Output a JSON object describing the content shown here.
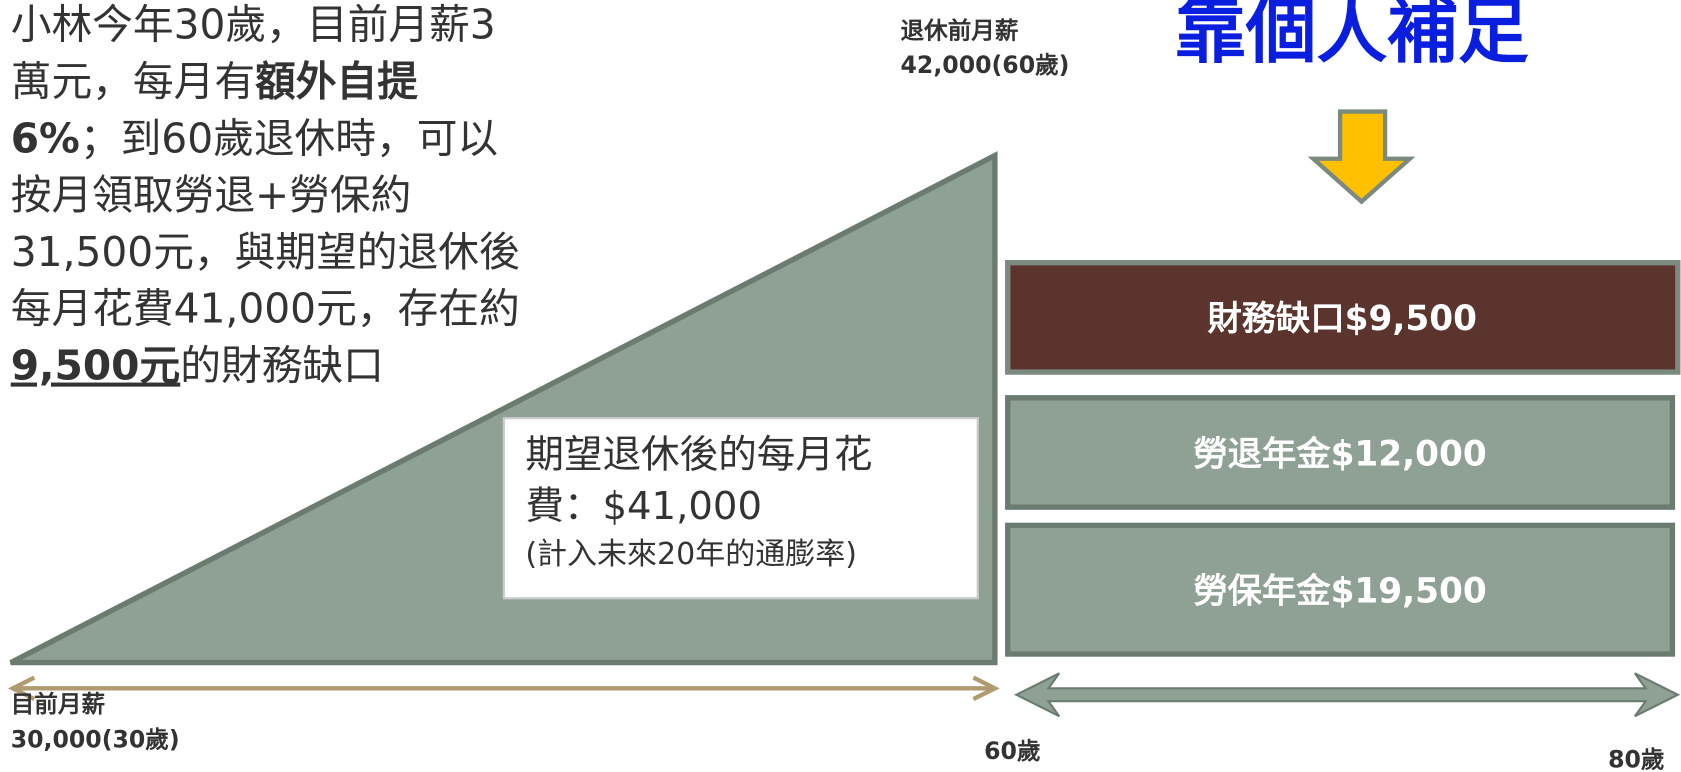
{
  "paragraph": [
    [
      {
        "text": "小林今年30歲，目前月薪3",
        "style": "normal"
      }
    ],
    [
      {
        "text": "萬元，每月有",
        "style": "normal"
      },
      {
        "text": "額外自提",
        "style": "bold"
      }
    ],
    [
      {
        "text": "6%",
        "style": "bold"
      },
      {
        "text": "；到60歲退休時，可以",
        "style": "normal"
      }
    ],
    [
      {
        "text": "按月領取勞退+勞保約",
        "style": "normal"
      }
    ],
    [
      {
        "text": "31,500元，與期望的退休後",
        "style": "normal"
      }
    ],
    [
      {
        "text": "每月花費41,000元，存在約",
        "style": "normal"
      }
    ],
    [
      {
        "text": "9,500元",
        "style": "bold-underline"
      },
      {
        "text": "的財務缺口",
        "style": "normal"
      }
    ]
  ],
  "pre_retirement_salary": [
    "退休前月薪",
    "42,000(60歲)"
  ],
  "headline": "靠個人補足",
  "expected_spending": [
    "期望退休後的每月花",
    "費：$41,000",
    "(計入未來20年的通膨率)"
  ],
  "stack": [
    "財務缺口$9,500",
    "勞退年金$12,000",
    "勞保年金$19,500"
  ],
  "current_salary": [
    "目前月薪",
    "30,000(30歲)"
  ],
  "age_60": "60歲",
  "age_80": "80歲"
}
